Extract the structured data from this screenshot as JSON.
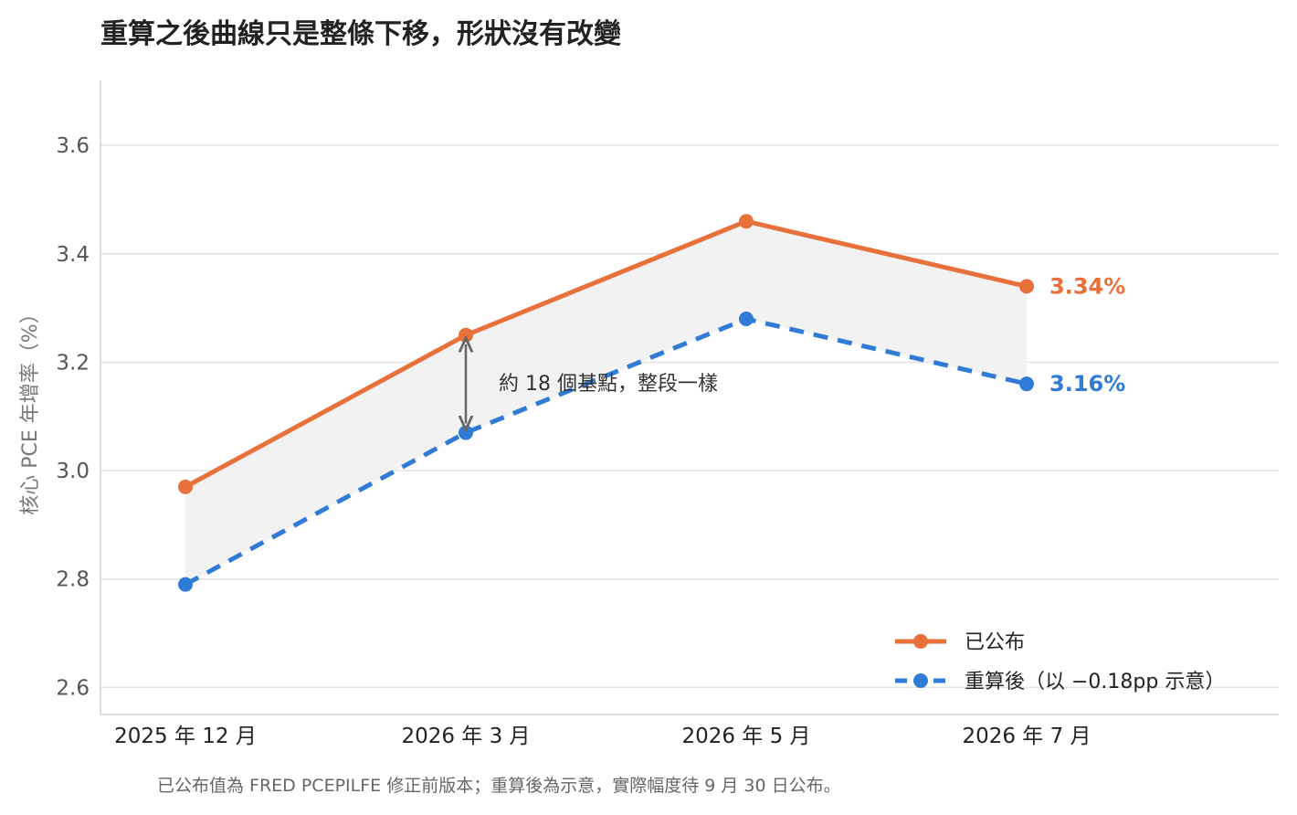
{
  "chart_data": {
    "type": "line",
    "title": "重算之後曲線只是整條下移，形狀沒有改變",
    "ylabel": "核心 PCE 年增率（%）",
    "xlabel": "",
    "categories": [
      "2025 年 12 月",
      "2026 年 3 月",
      "2026 年 5 月",
      "2026 年 7 月"
    ],
    "ylim": [
      2.55,
      3.72
    ],
    "yticks": [
      2.6,
      2.8,
      3.0,
      3.2,
      3.4,
      3.6
    ],
    "ytick_labels": [
      "2.6",
      "2.8",
      "3.0",
      "3.2",
      "3.4",
      "3.6"
    ],
    "grid": true,
    "legend_position": "bottom-right",
    "series": [
      {
        "name": "已公布",
        "values": [
          2.97,
          3.25,
          3.46,
          3.34
        ],
        "color": "#E8703A",
        "style": "solid",
        "end_label": "3.34%"
      },
      {
        "name": "重算後（以 −0.18pp 示意）",
        "values": [
          2.79,
          3.07,
          3.28,
          3.16
        ],
        "color": "#2F7BD6",
        "style": "dashed",
        "end_label": "3.16%"
      }
    ],
    "shaded_band_color": "#F2F2F2",
    "annotation": {
      "text": "約 18 個基點，整段一樣",
      "category_index": 1
    },
    "footnote": "已公布值為 FRED PCEPILFE 修正前版本；重算後為示意，實際幅度待 9 月 30 日公布。"
  }
}
